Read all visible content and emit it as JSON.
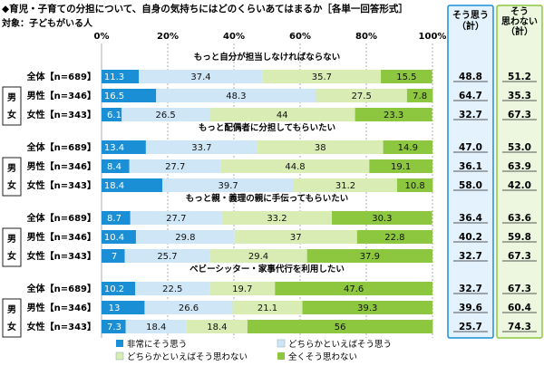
{
  "header": {
    "title": "◆育児・子育ての分担について、自身の気持ちにはどのくらいあてはまるか［各単一回答形式］",
    "subtitle": "対象：子どもがいる人"
  },
  "columns": {
    "agree_label": "そう思う\n（計）",
    "disagree_label": "そう\n思わない\n（計）"
  },
  "sex_box": {
    "male": "男",
    "female": "女"
  },
  "colors": {
    "s1": "#1a8fd6",
    "s2": "#cfe6f7",
    "s3": "#d8ecb4",
    "s4": "#8cc73f",
    "agree_col_border": "#1a8fd6",
    "agree_col_bg": "#e3f2fc",
    "disagree_col_border": "#8cc73f",
    "disagree_col_bg": "#edf7df"
  },
  "chart_data": {
    "type": "bar",
    "orientation": "horizontal",
    "stacked": true,
    "xlim": [
      0,
      100
    ],
    "x_ticks": [
      "0%",
      "20%",
      "40%",
      "60%",
      "80%",
      "100%"
    ],
    "series_names": [
      "非常にそう思う",
      "どちらかといえばそう思う",
      "どちらかといえばそう思わない",
      "全くそう思わない"
    ],
    "groups": [
      {
        "title": "もっと自分が担当しなければならない",
        "rows": [
          {
            "label": "全体【n=689】",
            "values": [
              11.3,
              37.4,
              35.7,
              15.5
            ],
            "agree": "48.8",
            "disagree": "51.2"
          },
          {
            "label": "男性【n=346】",
            "values": [
              16.5,
              48.3,
              27.5,
              7.8
            ],
            "agree": "64.7",
            "disagree": "35.3"
          },
          {
            "label": "女性【n=343】",
            "values": [
              6.1,
              26.5,
              44.0,
              23.3
            ],
            "agree": "32.7",
            "disagree": "67.3"
          }
        ]
      },
      {
        "title": "もっと配偶者に分担してもらいたい",
        "rows": [
          {
            "label": "全体【n=689】",
            "values": [
              13.4,
              33.7,
              38.0,
              14.9
            ],
            "agree": "47.0",
            "disagree": "53.0"
          },
          {
            "label": "男性【n=346】",
            "values": [
              8.4,
              27.7,
              44.8,
              19.1
            ],
            "agree": "36.1",
            "disagree": "63.9"
          },
          {
            "label": "女性【n=343】",
            "values": [
              18.4,
              39.7,
              31.2,
              10.8
            ],
            "agree": "58.0",
            "disagree": "42.0"
          }
        ]
      },
      {
        "title": "もっと親・義理の親に手伝ってもらいたい",
        "rows": [
          {
            "label": "全体【n=689】",
            "values": [
              8.7,
              27.7,
              33.2,
              30.3
            ],
            "agree": "36.4",
            "disagree": "63.6"
          },
          {
            "label": "男性【n=346】",
            "values": [
              10.4,
              29.8,
              37.0,
              22.8
            ],
            "agree": "40.2",
            "disagree": "59.8"
          },
          {
            "label": "女性【n=343】",
            "values": [
              7.0,
              25.7,
              29.4,
              37.9
            ],
            "agree": "32.7",
            "disagree": "67.3"
          }
        ]
      },
      {
        "title": "ベビーシッター・家事代行を利用したい",
        "rows": [
          {
            "label": "全体【n=689】",
            "values": [
              10.2,
              22.5,
              19.7,
              47.6
            ],
            "agree": "32.7",
            "disagree": "67.3"
          },
          {
            "label": "男性【n=346】",
            "values": [
              13.0,
              26.6,
              21.1,
              39.3
            ],
            "agree": "39.6",
            "disagree": "60.4"
          },
          {
            "label": "女性【n=343】",
            "values": [
              7.3,
              18.4,
              18.4,
              56.0
            ],
            "agree": "25.7",
            "disagree": "74.3"
          }
        ]
      }
    ]
  }
}
